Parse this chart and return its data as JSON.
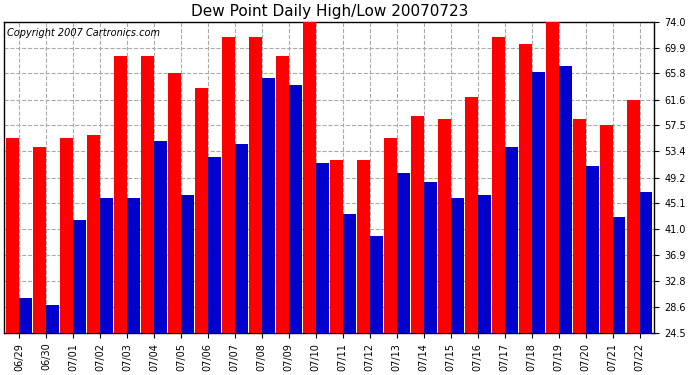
{
  "title": "Dew Point Daily High/Low 20070723",
  "copyright": "Copyright 2007 Cartronics.com",
  "dates": [
    "06/29",
    "06/30",
    "07/01",
    "07/02",
    "07/03",
    "07/04",
    "07/05",
    "07/06",
    "07/07",
    "07/08",
    "07/09",
    "07/10",
    "07/11",
    "07/12",
    "07/13",
    "07/14",
    "07/15",
    "07/16",
    "07/17",
    "07/18",
    "07/19",
    "07/20",
    "07/21",
    "07/22"
  ],
  "high_values": [
    55.5,
    54.0,
    55.5,
    56.0,
    68.5,
    68.5,
    65.8,
    63.5,
    71.5,
    71.5,
    68.5,
    74.0,
    52.0,
    52.0,
    55.5,
    59.0,
    58.5,
    62.0,
    71.5,
    70.5,
    74.0,
    58.5,
    57.5,
    61.6
  ],
  "low_values": [
    30.0,
    29.0,
    42.5,
    46.0,
    46.0,
    55.0,
    46.5,
    52.5,
    54.5,
    65.0,
    64.0,
    51.5,
    43.5,
    40.0,
    50.0,
    48.5,
    46.0,
    46.5,
    54.0,
    66.0,
    67.0,
    51.0,
    43.0,
    47.0
  ],
  "yticks": [
    24.5,
    28.6,
    32.8,
    36.9,
    41.0,
    45.1,
    49.2,
    53.4,
    57.5,
    61.6,
    65.8,
    69.9,
    74.0
  ],
  "ymin": 24.5,
  "ymax": 74.0,
  "high_color": "#ff0000",
  "low_color": "#0000cc",
  "bg_color": "#ffffff",
  "grid_color": "#aaaaaa",
  "title_fontsize": 11,
  "tick_fontsize": 7,
  "copyright_fontsize": 7
}
